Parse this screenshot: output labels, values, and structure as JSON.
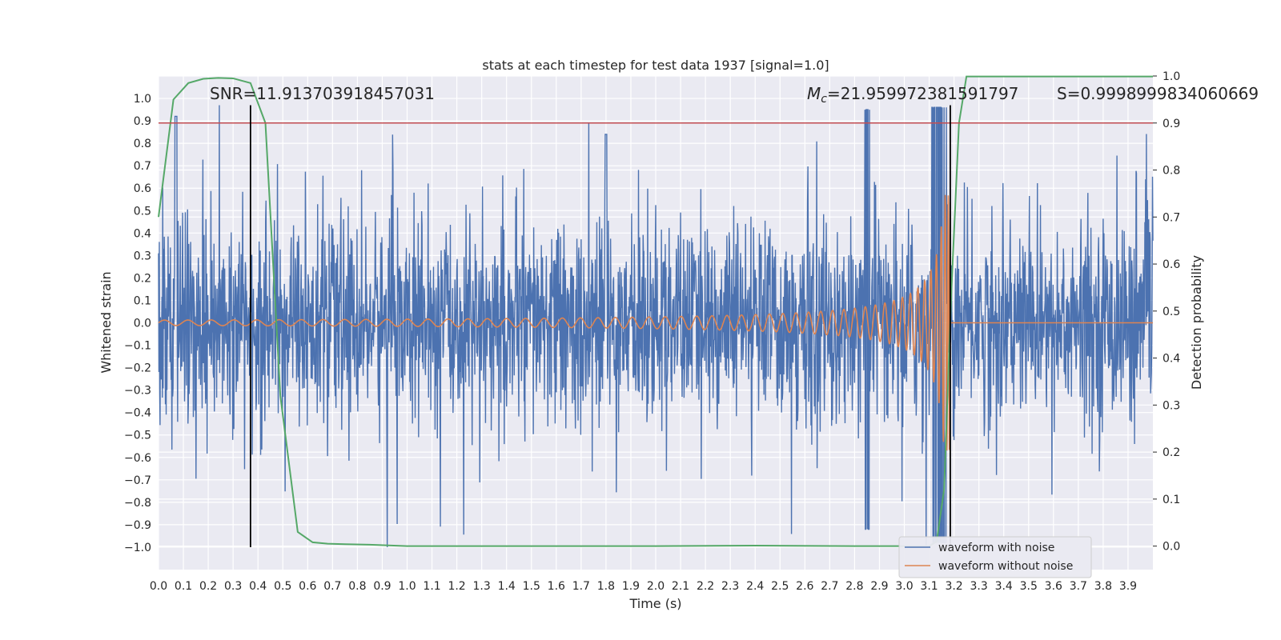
{
  "chart_data": {
    "type": "line",
    "title": "stats at each timestep for test data 1937 [signal=1.0]",
    "xlabel": "Time (s)",
    "ylabel": "Whitened strain",
    "y2label": "Detection probability",
    "xlim": [
      0.0,
      4.0
    ],
    "ylim": [
      -1.1,
      1.1
    ],
    "y2lim": [
      -0.05,
      1.0
    ],
    "xticks": [
      "0.0",
      "0.1",
      "0.2",
      "0.3",
      "0.4",
      "0.5",
      "0.6",
      "0.7",
      "0.8",
      "0.9",
      "1.0",
      "1.1",
      "1.2",
      "1.3",
      "1.4",
      "1.5",
      "1.6",
      "1.7",
      "1.8",
      "1.9",
      "2.0",
      "2.1",
      "2.2",
      "2.3",
      "2.4",
      "2.5",
      "2.6",
      "2.7",
      "2.8",
      "2.9",
      "3.0",
      "3.1",
      "3.2",
      "3.3",
      "3.4",
      "3.5",
      "3.6",
      "3.7",
      "3.8",
      "3.9"
    ],
    "yticks": [
      "1.0",
      "0.9",
      "0.8",
      "0.7",
      "0.6",
      "0.5",
      "0.4",
      "0.3",
      "0.2",
      "0.1",
      "0.0",
      "-0.1",
      "-0.2",
      "-0.3",
      "-0.4",
      "-0.5",
      "-0.6",
      "-0.7",
      "-0.8",
      "-0.9",
      "-1.0"
    ],
    "y2ticks": [
      "1.0",
      "0.9",
      "0.8",
      "0.7",
      "0.6",
      "0.5",
      "0.4",
      "0.3",
      "0.2",
      "0.1",
      "0.0"
    ],
    "annotations": {
      "snr": "SNR=11.913703918457031",
      "mc": "=21.959972381591797",
      "mc_symbol": "M",
      "mc_sub": "c",
      "s": "S=0.9998999834060669"
    },
    "grid": true,
    "legend_position": "bottom-right",
    "series": [
      {
        "name": "waveform with noise",
        "color": "#4c72b0",
        "style": "dense noise spanning approximately -1.0 to 0.96, extreme excursions near 2.85 s and 3.12-3.17 s"
      },
      {
        "name": "waveform without noise",
        "color": "#dd8452",
        "style": "chirp from 0.0 to 3.185 s",
        "amplitude_start": 0.012,
        "amplitude_peak": 0.57,
        "merger_time": 3.185
      },
      {
        "color": "#55a868",
        "axis": "right",
        "x": [
          0.0,
          0.06,
          0.12,
          0.18,
          0.24,
          0.3,
          0.37,
          0.43,
          0.49,
          0.56,
          0.62,
          0.68,
          0.75,
          0.85,
          1.0,
          1.2,
          1.5,
          2.0,
          2.4,
          2.8,
          3.0,
          3.1,
          3.13,
          3.16,
          3.19,
          3.22,
          3.25,
          3.3,
          3.5,
          3.7,
          4.0
        ],
        "y": [
          0.7,
          0.95,
          0.985,
          0.994,
          0.996,
          0.995,
          0.985,
          0.9,
          0.32,
          0.03,
          0.008,
          0.005,
          0.004,
          0.003,
          0.0,
          0.0,
          0.0,
          0.0,
          0.001,
          0.0,
          0.0,
          0.0,
          0.01,
          0.12,
          0.55,
          0.9,
          0.999,
          0.999,
          0.999,
          0.999,
          0.999
        ]
      }
    ],
    "hlines": [
      {
        "axis": "right",
        "y": 0.9,
        "color": "#c44e52"
      }
    ],
    "vlines": [
      {
        "x": 0.37,
        "color": "#000000"
      },
      {
        "x": 3.185,
        "color": "#000000"
      }
    ]
  }
}
